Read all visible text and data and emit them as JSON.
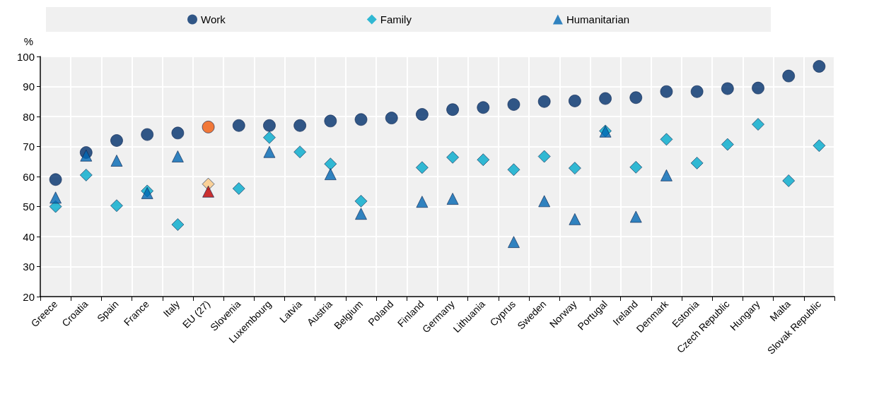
{
  "chart_data": {
    "type": "scatter",
    "ylabel": "%",
    "categories": [
      "Greece",
      "Croatia",
      "Spain",
      "France",
      "Italy",
      "EU (27)",
      "Slovenia",
      "Luxembourg",
      "Latvia",
      "Austria",
      "Belgium",
      "Poland",
      "Finland",
      "Germany",
      "Lithuania",
      "Cyprus",
      "Sweden",
      "Norway",
      "Portugal",
      "Ireland",
      "Denmark",
      "Estonia",
      "Czech Republic",
      "Hungary",
      "Malta",
      "Slovak Republic"
    ],
    "series": [
      {
        "name": "Work",
        "color": "#002f6c",
        "marker": "circle",
        "colors": [
          "#002f6c",
          "#002f6c",
          "#002f6c",
          "#002f6c",
          "#002f6c",
          "#f15a0b",
          "#002f6c",
          "#002f6c",
          "#002f6c",
          "#002f6c",
          "#002f6c",
          "#002f6c",
          "#002f6c",
          "#002f6c",
          "#002f6c",
          "#002f6c",
          "#002f6c",
          "#002f6c",
          "#002f6c",
          "#002f6c",
          "#002f6c",
          "#002f6c",
          "#002f6c",
          "#002f6c",
          "#002f6c",
          "#002f6c"
        ],
        "values": [
          59,
          68,
          72,
          74,
          74.5,
          76.5,
          77,
          77,
          77,
          78.5,
          79,
          79.5,
          80.7,
          82.3,
          83,
          84,
          85,
          85.2,
          86,
          86.3,
          88.3,
          88.3,
          89.3,
          89.5,
          93.5,
          96.7
        ]
      },
      {
        "name": "Family",
        "color": "#00aacc",
        "marker": "diamond",
        "colors": [
          "#00aacc",
          "#00aacc",
          "#00aacc",
          "#00aacc",
          "#00aacc",
          "#fdc982",
          "#00aacc",
          "#00aacc",
          "#00aacc",
          "#00aacc",
          "#00aacc",
          "#00aacc",
          "#00aacc",
          "#00aacc",
          "#00aacc",
          "#00aacc",
          "#00aacc",
          "#00aacc",
          "#00aacc",
          "#00aacc",
          "#00aacc",
          "#00aacc",
          "#00aacc",
          "#00aacc",
          "#00aacc",
          "#00aacc"
        ],
        "values": [
          50,
          60.5,
          50.3,
          55.2,
          44,
          57.5,
          56,
          73,
          68.2,
          64.2,
          51.8,
          null,
          63,
          66.4,
          65.6,
          62.3,
          66.7,
          62.8,
          75.2,
          63.1,
          72.4,
          64.5,
          70.7,
          77.4,
          58.6,
          70.3
        ]
      },
      {
        "name": "Humanitarian",
        "color": "#0066b3",
        "marker": "triangle",
        "colors": [
          "#0066b3",
          "#0066b3",
          "#0066b3",
          "#0066b3",
          "#0066b3",
          "#c00000",
          "#0066b3",
          "#0066b3",
          "#0066b3",
          "#0066b3",
          "#0066b3",
          "#0066b3",
          "#0066b3",
          "#0066b3",
          "#0066b3",
          "#0066b3",
          "#0066b3",
          "#0066b3",
          "#0066b3",
          "#0066b3",
          "#0066b3",
          "#0066b3",
          "#0066b3",
          "#0066b3",
          "#0066b3",
          "#0066b3"
        ],
        "values": [
          53,
          67,
          65.3,
          54.5,
          66.7,
          55,
          null,
          68.2,
          null,
          60.8,
          47.6,
          null,
          51.6,
          52.6,
          null,
          38.2,
          51.8,
          45.8,
          75,
          46.6,
          60.4,
          null,
          null,
          null,
          null,
          null
        ]
      }
    ],
    "ylim": [
      20,
      100
    ],
    "yticks": [
      20,
      30,
      40,
      50,
      60,
      70,
      80,
      90,
      100
    ],
    "grid": true,
    "legend": "top"
  }
}
